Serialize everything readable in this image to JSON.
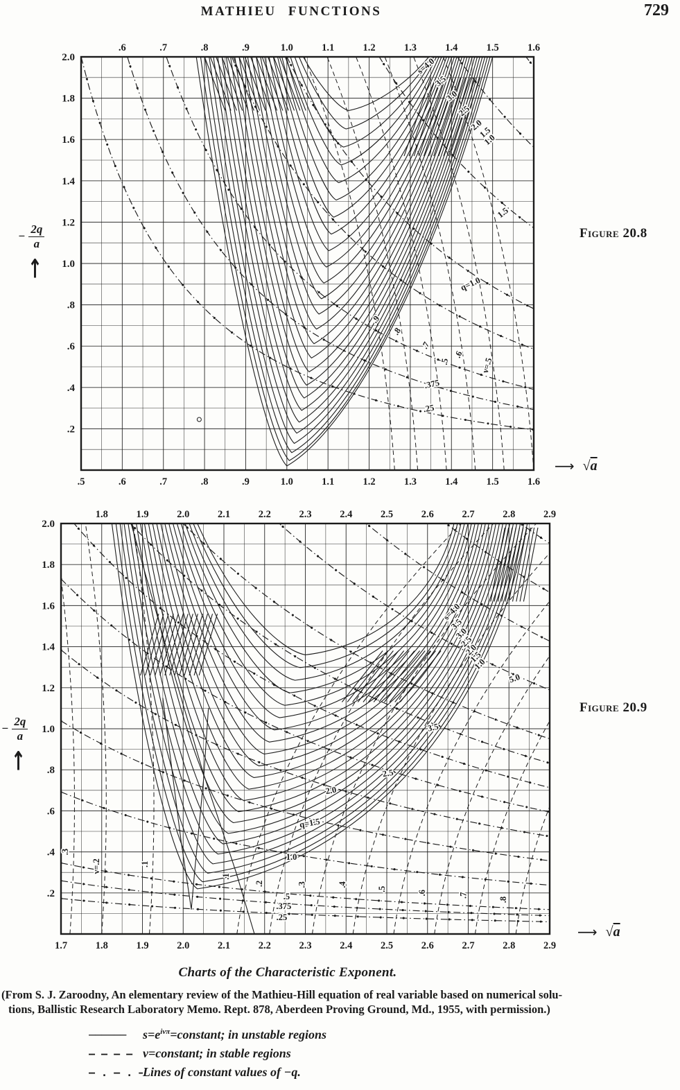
{
  "header": {
    "title": "MATHIEU FUNCTIONS",
    "page_number": "729"
  },
  "figures": [
    {
      "label": "Figure 20.8"
    },
    {
      "label": "Figure 20.9"
    }
  ],
  "colors": {
    "ink": "#1b1b1b",
    "paper": "#fdfdfb"
  },
  "chart_data": [
    {
      "type": "line",
      "figure_label": "Figure 20.8",
      "description": "Chart of the characteristic exponent of the Mathieu equation: solid curves s=constant in unstable regions, dashed curves nu=constant in stable regions, dash-dot lines constant -q (y = 2q/x^2).",
      "x_axis": {
        "range": [
          0.5,
          1.6
        ],
        "minor_step": 0.05,
        "ticks_top": {
          "start": 0.6,
          "step": 0.1,
          "labels": [
            ".6",
            ".7",
            ".8",
            ".9",
            "1.0",
            "1.1",
            "1.2",
            "1.3",
            "1.4",
            "1.5",
            "1.6"
          ]
        },
        "ticks_bottom": {
          "start": 0.5,
          "step": 0.1,
          "labels": [
            ".5",
            ".6",
            ".7",
            ".8",
            ".9",
            "1.0",
            "1.1",
            "1.2",
            "1.3",
            "1.4",
            "1.5",
            "1.6"
          ]
        },
        "axis_label": {
          "arrow": "⟶",
          "radical": "√",
          "radicand": "a"
        }
      },
      "y_axis": {
        "range": [
          0,
          2.0
        ],
        "minor_step": 0.1,
        "ticks": {
          "start": 2.0,
          "step": -0.2,
          "labels": [
            "2.0",
            "1.8",
            "1.6",
            "1.4",
            "1.2",
            "1.0",
            ".8",
            ".6",
            ".4",
            ".2"
          ]
        },
        "axis_label": {
          "minus": "−",
          "numerator": "2q",
          "denominator": "a",
          "arrow": "↑"
        }
      },
      "s_family": {
        "count": 26,
        "lx": [
          0.78,
          1.04
        ],
        "vx": [
          1.0,
          1.15
        ],
        "vy": [
          0.02,
          1.74
        ],
        "vy_pow": 1.3,
        "rx": [
          1.5,
          1.345
        ],
        "left_arm": {
          "a1": 0.38,
          "b1": 0.58,
          "a2": 0.22,
          "b2": 0.05
        },
        "right_arm": {
          "a1": 0.34,
          "b1": 0.1,
          "a2": 0.26,
          "b2": 0.52
        }
      },
      "q_lines": {
        "formula": "y = 2q/x^2",
        "values": [
          0.25,
          0.375,
          0.5,
          0.75,
          1.0,
          1.5,
          2.0,
          2.5,
          3.0
        ]
      },
      "nu_curves": [
        {
          "bx": 1.262,
          "cx": 1.222,
          "cy": 1.1,
          "tx": 1.042
        },
        {
          "bx": 1.318,
          "cx": 1.278,
          "cy": 1.1,
          "tx": 1.098
        },
        {
          "bx": 1.388,
          "cx": 1.348,
          "cy": 1.1,
          "tx": 1.168
        },
        {
          "bx": 1.458,
          "cx": 1.418,
          "cy": 1.1,
          "tx": 1.238
        },
        {
          "bx": 1.528,
          "cx": 1.488,
          "cy": 1.1,
          "tx": 1.308
        },
        {
          "bx": 1.6,
          "cx": 1.56,
          "cy": 1.1,
          "tx": 1.38
        }
      ],
      "hatch_bundles": [
        {
          "x0": 0.8,
          "y0": 2.0,
          "dx": 0.014,
          "x1off": 0.05,
          "y1": 1.74,
          "n": 15
        },
        {
          "x0": 1.285,
          "y0": 1.52,
          "dx": 0.012,
          "x1off": 0.065,
          "y1": 1.9,
          "n": 11
        }
      ],
      "markers": [
        {
          "x": 0.787,
          "y": 0.245
        }
      ],
      "labels": [
        {
          "text": "s=4.0",
          "x": 1.342,
          "y": 1.945,
          "rot": -40
        },
        {
          "text": "3.5",
          "x": 1.378,
          "y": 1.872,
          "rot": -40
        },
        {
          "text": "3.0",
          "x": 1.405,
          "y": 1.8,
          "rot": -40
        },
        {
          "text": "2.5",
          "x": 1.435,
          "y": 1.728,
          "rot": -40
        },
        {
          "text": "2.0",
          "x": 1.465,
          "y": 1.66,
          "rot": -40
        },
        {
          "text": "1.5",
          "x": 1.486,
          "y": 1.624,
          "rot": -40
        },
        {
          "text": "1.0",
          "x": 1.497,
          "y": 1.588,
          "rot": -40
        },
        {
          "text": "1.5",
          "x": 1.529,
          "y": 1.235,
          "rot": -38
        },
        {
          "text": "q=1.0",
          "x": 1.449,
          "y": 0.889,
          "rot": -25
        },
        {
          "text": ".9",
          "x": 1.221,
          "y": 0.721,
          "rot": -50
        },
        {
          "text": ".8",
          "x": 1.273,
          "y": 0.664,
          "rot": -55
        },
        {
          "text": ".7",
          "x": 1.343,
          "y": 0.597,
          "rot": -60
        },
        {
          "text": ".6",
          "x": 1.423,
          "y": 0.554,
          "rot": -65
        },
        {
          "text": ".5",
          "x": 1.39,
          "y": 0.523,
          "rot": -82
        },
        {
          "text": "ν=.5",
          "x": 1.493,
          "y": 0.503,
          "rot": -74
        },
        {
          "text": ".375",
          "x": 1.354,
          "y": 0.403,
          "rot": -12
        },
        {
          "text": ".25",
          "x": 1.346,
          "y": 0.285,
          "rot": -10
        }
      ]
    },
    {
      "type": "line",
      "figure_label": "Figure 20.9",
      "description": "Continuation chart of the characteristic exponent for sqrt(a) from 1.7 to 2.9.",
      "x_axis": {
        "range": [
          1.7,
          2.9
        ],
        "minor_step": 0.05,
        "ticks_top": {
          "start": 1.8,
          "step": 0.1,
          "labels": [
            "1.8",
            "1.9",
            "2.0",
            "2.1",
            "2.2",
            "2.3",
            "2.4",
            "2.5",
            "2.6",
            "2.7",
            "2.8",
            "2.9"
          ]
        },
        "ticks_bottom": {
          "start": 1.7,
          "step": 0.1,
          "labels": [
            "1.7",
            "1.8",
            "1.9",
            "2.0",
            "2.1",
            "2.2",
            "2.3",
            "2.4",
            "2.5",
            "2.6",
            "2.7",
            "2.8",
            "2.9"
          ]
        },
        "axis_label": {
          "arrow": "⟶",
          "radical": "√",
          "radicand": "a"
        }
      },
      "y_axis": {
        "range": [
          0,
          2.0
        ],
        "minor_step": 0.1,
        "ticks": {
          "start": 2.0,
          "step": -0.2,
          "labels": [
            "2.0",
            "1.8",
            "1.6",
            "1.4",
            "1.2",
            "1.0",
            ".8",
            ".6",
            ".4",
            ".2"
          ]
        },
        "axis_label": {
          "minus": "−",
          "numerator": "2q",
          "denominator": "a",
          "arrow": "↑"
        }
      },
      "s_family": {
        "count": 22,
        "lx": [
          1.825,
          2.035
        ],
        "vx": [
          2.035,
          2.3
        ],
        "vy": [
          0.22,
          1.36
        ],
        "vy_pow": 1.15,
        "rx": [
          2.845,
          2.665
        ],
        "left_arm": {
          "a1": 0.32,
          "b1": 0.6,
          "a2": 0.25,
          "b2": 0.04
        },
        "right_arm": {
          "a1": 0.46,
          "b1": 0.06,
          "a2": 0.12,
          "b2": 0.42
        }
      },
      "q_lines": {
        "formula": "y = 2q/x^2",
        "values": [
          0.25,
          0.375,
          0.5,
          1.0,
          1.5,
          2.0,
          2.5,
          3.0,
          3.5,
          4.0,
          5.0,
          6.0,
          7.0,
          8.0
        ]
      },
      "nu_curves": [
        {
          "bx": 1.722,
          "cx": 1.757,
          "cy": 1.0,
          "tx": 1.682
        },
        {
          "bx": 1.8,
          "cx": 1.835,
          "cy": 1.0,
          "tx": 1.76
        },
        {
          "bx": 1.917,
          "cx": 1.952,
          "cy": 1.0,
          "tx": 1.877
        },
        {
          "bx": 2.132,
          "cx": 2.202,
          "cy": 1.0,
          "tx": 2.682
        },
        {
          "bx": 2.212,
          "cx": 2.282,
          "cy": 1.0,
          "tx": 2.762
        },
        {
          "bx": 2.317,
          "cx": 2.387,
          "cy": 1.0,
          "tx": 2.867
        },
        {
          "bx": 2.417,
          "cx": 2.487,
          "cy": 1.0,
          "tx": 2.967
        },
        {
          "bx": 2.517,
          "cx": 2.587,
          "cy": 1.0,
          "tx": 3.067
        },
        {
          "bx": 2.617,
          "cx": 2.687,
          "cy": 1.0,
          "tx": 3.167
        },
        {
          "bx": 2.717,
          "cx": 2.787,
          "cy": 1.0,
          "tx": 3.267
        },
        {
          "bx": 2.817,
          "cx": 2.887,
          "cy": 1.0,
          "tx": 3.367
        }
      ],
      "hatch_bundles": [
        {
          "x0": 1.895,
          "y0": 1.26,
          "dx": 0.012,
          "x1off": 0.045,
          "y1": 1.56,
          "n": 13
        },
        {
          "x0": 2.39,
          "y0": 1.13,
          "dx": 0.013,
          "x1off": 0.1,
          "y1": 1.38,
          "n": 12
        },
        {
          "x0": 2.755,
          "y0": 1.62,
          "dx": 0.009,
          "x1off": 0.035,
          "y1": 1.98,
          "n": 10
        }
      ],
      "extra_curves": [
        {
          "points": [
            [
              1.95,
              1.15
            ],
            [
              1.995,
              0.45
            ],
            [
              2.02,
              0.12
            ],
            [
              2.028,
              0.3
            ],
            [
              2.05,
              0.75
            ],
            [
              2.062,
              1.1
            ]
          ]
        },
        {
          "points": [
            [
              1.872,
              2.0
            ],
            [
              1.955,
              1.42
            ],
            [
              2.05,
              0.78
            ],
            [
              2.13,
              0.3
            ],
            [
              2.175,
              0.0
            ]
          ]
        }
      ],
      "markers": [],
      "labels": [
        {
          "text": "s=4.0",
          "x": 2.664,
          "y": 1.56,
          "rot": -45
        },
        {
          "text": "3.5",
          "x": 2.676,
          "y": 1.5,
          "rot": -45
        },
        {
          "text": "3.0",
          "x": 2.688,
          "y": 1.455,
          "rot": -45
        },
        {
          "text": "2.5",
          "x": 2.7,
          "y": 1.415,
          "rot": -45
        },
        {
          "text": "2.0",
          "x": 2.712,
          "y": 1.375,
          "rot": -45
        },
        {
          "text": "1.5",
          "x": 2.723,
          "y": 1.34,
          "rot": -45
        },
        {
          "text": "1.0",
          "x": 2.733,
          "y": 1.305,
          "rot": -45
        },
        {
          "text": "5.0",
          "x": 2.816,
          "y": 1.233,
          "rot": -20
        },
        {
          "text": "3.5",
          "x": 2.615,
          "y": 0.993,
          "rot": -12
        },
        {
          "text": "2.5",
          "x": 2.504,
          "y": 0.77,
          "rot": -10
        },
        {
          "text": "2.0",
          "x": 2.364,
          "y": 0.686,
          "rot": -10
        },
        {
          "text": "q=1.5",
          "x": 2.312,
          "y": 0.527,
          "rot": -10
        },
        {
          "text": "1.0",
          "x": 2.266,
          "y": 0.361,
          "rot": 0
        },
        {
          "text": ".5",
          "x": 2.254,
          "y": 0.169,
          "rot": 0
        },
        {
          "text": ".375",
          "x": 2.247,
          "y": 0.122,
          "rot": 0
        },
        {
          "text": ".25",
          "x": 2.242,
          "y": 0.068,
          "rot": 0
        },
        {
          "text": ".3",
          "x": 1.717,
          "y": 0.4,
          "rot": -90
        },
        {
          "text": "ν=.2",
          "x": 1.794,
          "y": 0.33,
          "rot": -90
        },
        {
          "text": ".1",
          "x": 1.913,
          "y": 0.34,
          "rot": -90
        },
        {
          "text": ".1",
          "x": 2.112,
          "y": 0.28,
          "rot": -90
        },
        {
          "text": ".2",
          "x": 2.194,
          "y": 0.245,
          "rot": -90
        },
        {
          "text": ".3",
          "x": 2.298,
          "y": 0.24,
          "rot": -90
        },
        {
          "text": ".4",
          "x": 2.398,
          "y": 0.24,
          "rot": -90
        },
        {
          "text": ".5",
          "x": 2.495,
          "y": 0.218,
          "rot": -90
        },
        {
          "text": ".6",
          "x": 2.594,
          "y": 0.2,
          "rot": -90
        },
        {
          "text": ".7",
          "x": 2.695,
          "y": 0.188,
          "rot": -90
        },
        {
          "text": ".8",
          "x": 2.793,
          "y": 0.167,
          "rot": -90
        }
      ]
    }
  ],
  "caption": {
    "text": "Charts of the Characteristic Exponent."
  },
  "attribution": {
    "lines": [
      "(From S. J. Zaroodny, An elementary review of the Mathieu-Hill equation of real variable based on numerical solu-",
      "tions, Ballistic Research Laboratory Memo. Rept. 878, Aberdeen Proving Ground, Md., 1955, with permission.)"
    ]
  },
  "legend": {
    "items": [
      {
        "style": "solid",
        "swatch": "──────",
        "label_pre": "s=e",
        "label_sup": "iνπ",
        "label_post": "=constant; in unstable regions"
      },
      {
        "style": "dashed",
        "swatch": "– – – –",
        "label": "ν=constant; in stable regions"
      },
      {
        "style": "dashdot",
        "swatch": "– . – . –",
        "label": "Lines of constant values of −q."
      }
    ]
  }
}
